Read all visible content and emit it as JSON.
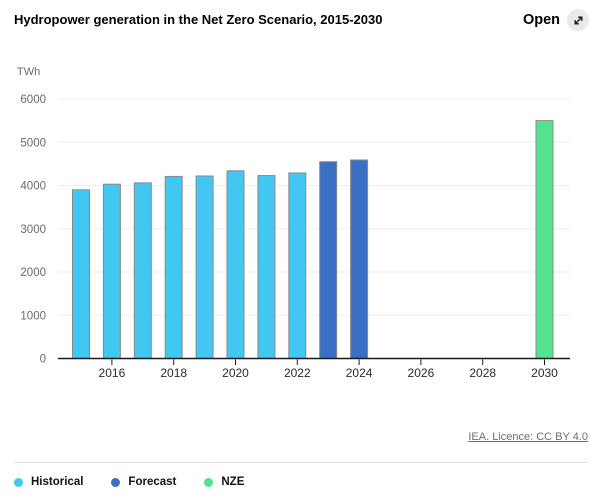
{
  "header": {
    "title": "Hydropower generation in the Net Zero Scenario, 2015-2030",
    "open_label": "Open",
    "open_icon": "expand-diagonal-icon"
  },
  "chart_data": {
    "type": "bar",
    "title": "Hydropower generation in the Net Zero Scenario, 2015-2030",
    "unit": "TWh",
    "ylabel": "TWh",
    "xlabel": "",
    "ylim": [
      0,
      6000
    ],
    "yticks": [
      0,
      1000,
      2000,
      3000,
      4000,
      5000,
      6000
    ],
    "x_range": [
      2015,
      2030
    ],
    "xticks": [
      2016,
      2018,
      2020,
      2022,
      2024,
      2026,
      2028,
      2030
    ],
    "grid": true,
    "legend_position": "bottom-left",
    "bar_border_color": "#8A8A8A",
    "axis_color": "#1A1A1A",
    "gridline_color": "#EDEDED",
    "series": [
      {
        "name": "Historical",
        "color": "#41C7F2",
        "points": {
          "2015": 3900,
          "2016": 4030,
          "2017": 4060,
          "2018": 4210,
          "2019": 4220,
          "2020": 4340,
          "2021": 4230,
          "2022": 4290
        }
      },
      {
        "name": "Forecast",
        "color": "#3B6FC4",
        "points": {
          "2023": 4550,
          "2024": 4590
        }
      },
      {
        "name": "NZE",
        "color": "#55E28E",
        "points": {
          "2030": 5500
        }
      }
    ]
  },
  "footer": {
    "license_text": "IEA. Licence: CC BY 4.0"
  }
}
